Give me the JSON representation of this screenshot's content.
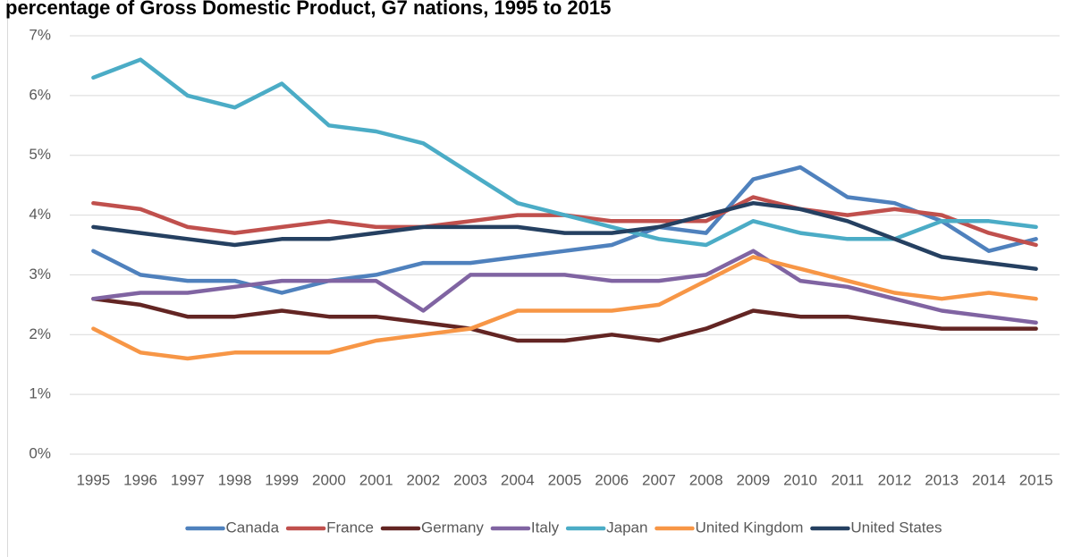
{
  "chart_data": {
    "type": "line",
    "title": "percentage of Gross Domestic Product, G7 nations, 1995 to 2015",
    "categories": [
      "1995",
      "1996",
      "1997",
      "1998",
      "1999",
      "2000",
      "2001",
      "2002",
      "2003",
      "2004",
      "2005",
      "2006",
      "2007",
      "2008",
      "2009",
      "2010",
      "2011",
      "2012",
      "2013",
      "2014",
      "2015"
    ],
    "series": [
      {
        "name": "Canada",
        "color": "#4f81bd",
        "values": [
          3.4,
          3.0,
          2.9,
          2.9,
          2.7,
          2.9,
          3.0,
          3.2,
          3.2,
          3.3,
          3.4,
          3.5,
          3.8,
          3.7,
          4.6,
          4.8,
          4.3,
          4.2,
          3.9,
          3.4,
          3.6
        ]
      },
      {
        "name": "France",
        "color": "#c0504d",
        "values": [
          4.2,
          4.1,
          3.8,
          3.7,
          3.8,
          3.9,
          3.8,
          3.8,
          3.9,
          4.0,
          4.0,
          3.9,
          3.9,
          3.9,
          4.3,
          4.1,
          4.0,
          4.1,
          4.0,
          3.7,
          3.5
        ]
      },
      {
        "name": "Germany",
        "color": "#632523",
        "values": [
          2.6,
          2.5,
          2.3,
          2.3,
          2.4,
          2.3,
          2.3,
          2.2,
          2.1,
          1.9,
          1.9,
          2.0,
          1.9,
          2.1,
          2.4,
          2.3,
          2.3,
          2.2,
          2.1,
          2.1,
          2.1
        ]
      },
      {
        "name": "Italy",
        "color": "#8064a2",
        "values": [
          2.6,
          2.7,
          2.7,
          2.8,
          2.9,
          2.9,
          2.9,
          2.4,
          3.0,
          3.0,
          3.0,
          2.9,
          2.9,
          3.0,
          3.4,
          2.9,
          2.8,
          2.6,
          2.4,
          2.3,
          2.2
        ]
      },
      {
        "name": "Japan",
        "color": "#4bacc6",
        "values": [
          6.3,
          6.6,
          6.0,
          5.8,
          6.2,
          5.5,
          5.4,
          5.2,
          4.7,
          4.2,
          4.0,
          3.8,
          3.6,
          3.5,
          3.9,
          3.7,
          3.6,
          3.6,
          3.9,
          3.9,
          3.8
        ]
      },
      {
        "name": "United Kingdom",
        "color": "#f79646",
        "values": [
          2.1,
          1.7,
          1.6,
          1.7,
          1.7,
          1.7,
          1.9,
          2.0,
          2.1,
          2.4,
          2.4,
          2.4,
          2.5,
          2.9,
          3.3,
          3.1,
          2.9,
          2.7,
          2.6,
          2.7,
          2.6
        ]
      },
      {
        "name": "United States",
        "color": "#254061",
        "values": [
          3.8,
          3.7,
          3.6,
          3.5,
          3.6,
          3.6,
          3.7,
          3.8,
          3.8,
          3.8,
          3.7,
          3.7,
          3.8,
          4.0,
          4.2,
          4.1,
          3.9,
          3.6,
          3.3,
          3.2,
          3.1
        ]
      }
    ],
    "ylim": [
      0,
      7
    ],
    "yticks": [
      {
        "value": 0,
        "label": "0%"
      },
      {
        "value": 1,
        "label": "1%"
      },
      {
        "value": 2,
        "label": "2%"
      },
      {
        "value": 3,
        "label": "3%"
      },
      {
        "value": 4,
        "label": "4%"
      },
      {
        "value": 5,
        "label": "5%"
      },
      {
        "value": 6,
        "label": "6%"
      },
      {
        "value": 7,
        "label": "7%"
      }
    ],
    "grid": true,
    "legend": "bottom"
  }
}
